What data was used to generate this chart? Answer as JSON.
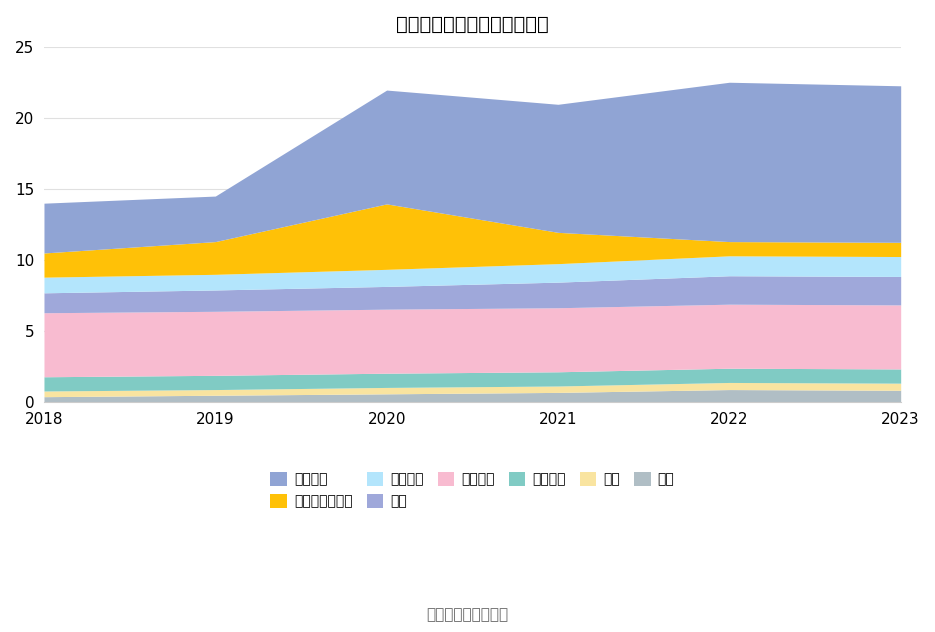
{
  "years": [
    2018,
    2019,
    2020,
    2021,
    2022,
    2023
  ],
  "title": "历年主要资产堆积图（亿元）",
  "source": "数据来源：恒生聚源",
  "series": [
    {
      "name": "其它",
      "color": "#b0bec5",
      "values": [
        0.4,
        0.5,
        0.6,
        0.7,
        0.9,
        0.85
      ]
    },
    {
      "name": "商誉",
      "color": "#f9e4a0",
      "values": [
        0.4,
        0.4,
        0.45,
        0.45,
        0.5,
        0.5
      ]
    },
    {
      "name": "无形资产",
      "color": "#80cbc4",
      "values": [
        1.0,
        1.0,
        1.0,
        1.0,
        1.0,
        1.0
      ]
    },
    {
      "name": "固定资产",
      "color": "#f8bbd0",
      "values": [
        4.5,
        4.5,
        4.5,
        4.5,
        4.5,
        4.5
      ]
    },
    {
      "name": "存货",
      "color": "#9fa8da",
      "values": [
        1.4,
        1.5,
        1.6,
        1.8,
        2.0,
        2.0
      ]
    },
    {
      "name": "应收账款",
      "color": "#b3e5fc",
      "values": [
        1.1,
        1.1,
        1.2,
        1.3,
        1.4,
        1.4
      ]
    },
    {
      "name": "交易性金融资产",
      "color": "#ffc107",
      "values": [
        1.7,
        2.3,
        4.6,
        2.2,
        1.0,
        1.0
      ]
    },
    {
      "name": "货币资金",
      "color": "#90a4d4",
      "values": [
        3.5,
        3.2,
        8.0,
        9.0,
        11.2,
        11.0
      ]
    }
  ],
  "ylim": [
    0,
    25
  ],
  "yticks": [
    0,
    5,
    10,
    15,
    20,
    25
  ],
  "background_color": "#ffffff",
  "title_fontsize": 14,
  "legend_fontsize": 10,
  "source_fontsize": 11
}
